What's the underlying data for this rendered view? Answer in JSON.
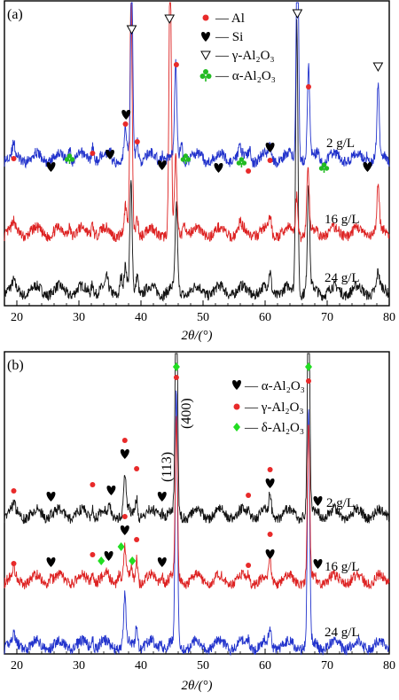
{
  "figure": {
    "panels": [
      {
        "id": "a",
        "panel_label": "(a)",
        "xlabel": "2θ/(°)",
        "xlim": [
          18,
          80
        ],
        "xticks": [
          20,
          30,
          40,
          50,
          60,
          70,
          80
        ],
        "legend": [
          {
            "symbol": "circle",
            "color": "#e82a2a",
            "text": "— Al"
          },
          {
            "symbol": "heart",
            "color": "#000000",
            "text": "— Si"
          },
          {
            "symbol": "tri-down",
            "color": "#000000",
            "text": "— γ-Al₂O₃"
          },
          {
            "symbol": "club",
            "color": "#22bb22",
            "text": "— α-Al₂O₃"
          }
        ],
        "series_labels": [
          "2 g/L",
          "16 g/L",
          "24 g/L"
        ]
      },
      {
        "id": "b",
        "panel_label": "(b)",
        "xlabel": "2θ/(°)",
        "xlim": [
          18,
          80
        ],
        "xticks": [
          20,
          30,
          40,
          50,
          60,
          70,
          80
        ],
        "legend": [
          {
            "symbol": "heart",
            "color": "#000000",
            "text": "— α-Al₂O₃"
          },
          {
            "symbol": "circle",
            "color": "#e82a2a",
            "text": "— γ-Al₂O₃"
          },
          {
            "symbol": "diamond",
            "color": "#22bb22",
            "text": "— δ-Al₂O₃"
          }
        ],
        "annotations": [
          "(113)",
          "(400)"
        ],
        "series_labels": [
          "2 g/L",
          "16 g/L",
          "24 g/L"
        ]
      }
    ]
  },
  "chart_data": [
    {
      "type": "line",
      "panel": "a",
      "xlabel": "2θ/(°)",
      "xlim": [
        18,
        80
      ],
      "series": [
        {
          "name": "2 g/L",
          "color": "#2233cc",
          "baseline": 0.0,
          "peaks": [
            [
              19.5,
              0.5
            ],
            [
              28.5,
              0.7
            ],
            [
              32.2,
              0.8
            ],
            [
              35,
              0.4
            ],
            [
              37.5,
              1.5
            ],
            [
              38.5,
              9.0
            ],
            [
              39.4,
              1.0
            ],
            [
              43.5,
              0.4
            ],
            [
              45.6,
              4.8
            ],
            [
              46.5,
              0.9
            ],
            [
              55.9,
              0.5
            ],
            [
              57.5,
              0.5
            ],
            [
              60.8,
              0.9
            ],
            [
              65.2,
              13.0
            ],
            [
              67.0,
              4.5
            ],
            [
              68.5,
              0.4
            ],
            [
              76.5,
              0.4
            ],
            [
              78.2,
              3.6
            ]
          ]
        },
        {
          "name": "16 g/L",
          "color": "#dd2222",
          "baseline": 0.0,
          "peaks": [
            [
              19.5,
              0.4
            ],
            [
              28.5,
              0.5
            ],
            [
              32.2,
              0.6
            ],
            [
              37.5,
              1.2
            ],
            [
              38.4,
              12.0
            ],
            [
              39.4,
              0.9
            ],
            [
              44.7,
              14.0
            ],
            [
              45.6,
              3.8
            ],
            [
              47.0,
              0.8
            ],
            [
              56.0,
              0.4
            ],
            [
              60.8,
              0.8
            ],
            [
              65.1,
              2.0
            ],
            [
              66.9,
              3.2
            ],
            [
              78.2,
              2.3
            ]
          ]
        },
        {
          "name": "24 g/L",
          "color": "#111111",
          "baseline": 0.0,
          "peaks": [
            [
              19.5,
              0.3
            ],
            [
              32.2,
              0.6
            ],
            [
              34.5,
              0.5
            ],
            [
              36.8,
              0.8
            ],
            [
              37.5,
              1.1
            ],
            [
              38.4,
              5.4
            ],
            [
              39.4,
              1.0
            ],
            [
              45.7,
              4.3
            ],
            [
              60.8,
              0.9
            ],
            [
              65.1,
              14.0
            ],
            [
              67.0,
              5.5
            ],
            [
              78.2,
              0.8
            ]
          ]
        }
      ]
    },
    {
      "type": "line",
      "panel": "b",
      "xlabel": "2θ/(°)",
      "xlim": [
        18,
        80
      ],
      "series": [
        {
          "name": "2 g/L",
          "color": "#111111",
          "baseline": 0.0,
          "peaks": [
            [
              19.5,
              0.4
            ],
            [
              25.5,
              0.2
            ],
            [
              32.2,
              0.5
            ],
            [
              35,
              0.3
            ],
            [
              37.4,
              2.0
            ],
            [
              39.3,
              1.0
            ],
            [
              43.4,
              0.3
            ],
            [
              45.7,
              13.0
            ],
            [
              57.3,
              0.3
            ],
            [
              60.8,
              1.0
            ],
            [
              67.0,
              12.0
            ],
            [
              68.5,
              0.3
            ]
          ]
        },
        {
          "name": "16 g/L",
          "color": "#dd2222",
          "baseline": 0.0,
          "peaks": [
            [
              19.5,
              0.4
            ],
            [
              25.5,
              0.3
            ],
            [
              32.2,
              0.5
            ],
            [
              34.5,
              0.3
            ],
            [
              36.5,
              0.5
            ],
            [
              37.4,
              1.6
            ],
            [
              38.5,
              0.5
            ],
            [
              39.3,
              1.2
            ],
            [
              43.4,
              0.4
            ],
            [
              45.7,
              8.0
            ],
            [
              57.3,
              0.3
            ],
            [
              60.8,
              0.9
            ],
            [
              67.0,
              8.0
            ]
          ]
        },
        {
          "name": "24 g/L",
          "color": "#2233cc",
          "baseline": 0.0,
          "peaks": [
            [
              19.5,
              0.4
            ],
            [
              32.2,
              0.5
            ],
            [
              37.4,
              2.4
            ],
            [
              39.3,
              1.2
            ],
            [
              43.2,
              0.4
            ],
            [
              45.7,
              13.0
            ],
            [
              57.3,
              0.3
            ],
            [
              60.8,
              0.9
            ],
            [
              67.0,
              12.0
            ]
          ]
        }
      ]
    }
  ]
}
